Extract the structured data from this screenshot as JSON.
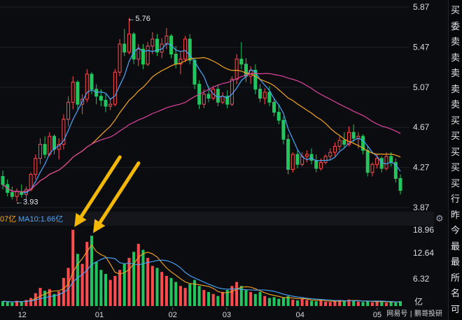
{
  "chart_data": [
    {
      "type": "candlestick",
      "x_axis_months": [
        "12",
        "01",
        "02",
        "03",
        "04",
        "05"
      ],
      "y_ticks": [
        "5.87",
        "5.47",
        "5.07",
        "4.67",
        "4.27",
        "3.87"
      ],
      "ylim": [
        3.87,
        5.87
      ],
      "annotations": [
        {
          "label": "←5.76",
          "price": 5.76,
          "kind": "period-high"
        },
        {
          "label": "←3.93",
          "price": 3.93,
          "kind": "period-low"
        }
      ],
      "candles_ohlc": [
        [
          4.18,
          4.24,
          4.05,
          4.1
        ],
        [
          4.1,
          4.15,
          3.98,
          4.02
        ],
        [
          4.02,
          4.08,
          3.95,
          3.98
        ],
        [
          3.98,
          4.06,
          3.93,
          4.03
        ],
        [
          4.03,
          4.1,
          3.97,
          4.0
        ],
        [
          4.0,
          4.08,
          3.94,
          4.05
        ],
        [
          4.05,
          4.22,
          4.03,
          4.2
        ],
        [
          4.2,
          4.4,
          4.15,
          4.36
        ],
        [
          4.36,
          4.56,
          4.3,
          4.5
        ],
        [
          4.5,
          4.58,
          4.36,
          4.4
        ],
        [
          4.4,
          4.62,
          4.38,
          4.58
        ],
        [
          4.58,
          4.6,
          4.4,
          4.45
        ],
        [
          4.45,
          4.56,
          4.35,
          4.5
        ],
        [
          4.5,
          4.8,
          4.45,
          4.75
        ],
        [
          4.75,
          4.98,
          4.68,
          4.92
        ],
        [
          4.92,
          5.18,
          4.85,
          5.12
        ],
        [
          5.12,
          5.14,
          4.85,
          4.9
        ],
        [
          4.9,
          5.0,
          4.8,
          4.95
        ],
        [
          4.95,
          5.25,
          4.92,
          5.2
        ],
        [
          5.2,
          5.22,
          5.0,
          5.05
        ],
        [
          5.05,
          5.1,
          4.9,
          4.98
        ],
        [
          4.98,
          5.05,
          4.88,
          4.94
        ],
        [
          4.94,
          5.0,
          4.82,
          4.88
        ],
        [
          4.88,
          4.96,
          4.84,
          4.9
        ],
        [
          4.9,
          5.25,
          4.88,
          5.22
        ],
        [
          5.22,
          5.55,
          5.18,
          5.5
        ],
        [
          5.5,
          5.65,
          5.38,
          5.42
        ],
        [
          5.42,
          5.76,
          5.4,
          5.6
        ],
        [
          5.6,
          5.62,
          5.3,
          5.35
        ],
        [
          5.35,
          5.5,
          5.28,
          5.45
        ],
        [
          5.45,
          5.5,
          5.25,
          5.3
        ],
        [
          5.3,
          5.52,
          5.28,
          5.48
        ],
        [
          5.48,
          5.62,
          5.4,
          5.55
        ],
        [
          5.55,
          5.6,
          5.38,
          5.42
        ],
        [
          5.42,
          5.56,
          5.36,
          5.5
        ],
        [
          5.5,
          5.66,
          5.45,
          5.58
        ],
        [
          5.58,
          5.6,
          5.36,
          5.4
        ],
        [
          5.4,
          5.48,
          5.26,
          5.3
        ],
        [
          5.3,
          5.42,
          5.2,
          5.35
        ],
        [
          5.35,
          5.58,
          5.32,
          5.55
        ],
        [
          5.55,
          5.6,
          5.3,
          5.34
        ],
        [
          5.34,
          5.36,
          5.05,
          5.1
        ],
        [
          5.1,
          5.14,
          4.85,
          4.9
        ],
        [
          4.9,
          5.05,
          4.86,
          5.0
        ],
        [
          5.0,
          5.08,
          4.92,
          4.96
        ],
        [
          4.96,
          5.08,
          4.94,
          5.05
        ],
        [
          5.05,
          5.1,
          4.88,
          4.92
        ],
        [
          4.92,
          5.02,
          4.9,
          4.98
        ],
        [
          4.98,
          5.04,
          4.86,
          4.9
        ],
        [
          4.9,
          5.18,
          4.88,
          5.15
        ],
        [
          5.15,
          5.4,
          5.1,
          5.35
        ],
        [
          5.35,
          5.52,
          5.25,
          5.3
        ],
        [
          5.3,
          5.36,
          5.12,
          5.18
        ],
        [
          5.18,
          5.28,
          5.1,
          5.24
        ],
        [
          5.24,
          5.3,
          5.0,
          5.05
        ],
        [
          5.05,
          5.1,
          4.92,
          4.96
        ],
        [
          4.96,
          5.06,
          4.9,
          5.02
        ],
        [
          5.02,
          5.08,
          4.88,
          4.92
        ],
        [
          4.92,
          4.96,
          4.78,
          4.82
        ],
        [
          4.82,
          4.9,
          4.7,
          4.74
        ],
        [
          4.74,
          4.78,
          4.5,
          4.55
        ],
        [
          4.55,
          4.6,
          4.2,
          4.25
        ],
        [
          4.25,
          4.42,
          4.22,
          4.4
        ],
        [
          4.4,
          4.44,
          4.26,
          4.3
        ],
        [
          4.3,
          4.42,
          4.28,
          4.38
        ],
        [
          4.38,
          4.44,
          4.32,
          4.4
        ],
        [
          4.4,
          4.46,
          4.3,
          4.34
        ],
        [
          4.34,
          4.4,
          4.22,
          4.26
        ],
        [
          4.26,
          4.36,
          4.24,
          4.32
        ],
        [
          4.32,
          4.4,
          4.3,
          4.38
        ],
        [
          4.38,
          4.46,
          4.34,
          4.42
        ],
        [
          4.42,
          4.52,
          4.38,
          4.48
        ],
        [
          4.48,
          4.58,
          4.44,
          4.54
        ],
        [
          4.54,
          4.62,
          4.46,
          4.5
        ],
        [
          4.5,
          4.68,
          4.48,
          4.62
        ],
        [
          4.62,
          4.7,
          4.52,
          4.56
        ],
        [
          4.56,
          4.62,
          4.46,
          4.58
        ],
        [
          4.58,
          4.6,
          4.4,
          4.44
        ],
        [
          4.44,
          4.48,
          4.18,
          4.22
        ],
        [
          4.22,
          4.32,
          4.18,
          4.3
        ],
        [
          4.3,
          4.4,
          4.26,
          4.36
        ],
        [
          4.36,
          4.38,
          4.22,
          4.26
        ],
        [
          4.26,
          4.42,
          4.24,
          4.38
        ],
        [
          4.38,
          4.42,
          4.28,
          4.32
        ],
        [
          4.32,
          4.36,
          4.12,
          4.16
        ],
        [
          4.16,
          4.2,
          4.0,
          4.04
        ]
      ],
      "overlays": [
        {
          "name": "MA-short",
          "color": "#4aa8ff"
        },
        {
          "name": "MA-mid",
          "color": "#f5a623"
        },
        {
          "name": "MA-long",
          "color": "#e0449f"
        }
      ]
    },
    {
      "type": "bar",
      "panel": "volume",
      "y_ticks": [
        "18.96",
        "12.64",
        "6.32"
      ],
      "unit": "亿",
      "ylim": [
        0,
        19.5
      ],
      "ma_labels": {
        "ma5_partial": "07亿",
        "ma10": "MA10:1.66亿"
      },
      "volumes": [
        1.2,
        1.0,
        0.9,
        1.3,
        1.1,
        1.5,
        2.0,
        3.2,
        4.5,
        3.8,
        4.2,
        3.0,
        3.6,
        7.0,
        9.5,
        19.0,
        13.0,
        10.5,
        16.0,
        17.5,
        11.0,
        9.0,
        8.0,
        6.5,
        7.5,
        9.0,
        10.5,
        12.0,
        13.5,
        15.5,
        14.0,
        12.0,
        10.0,
        9.5,
        8.5,
        7.5,
        7.0,
        6.0,
        5.0,
        4.5,
        5.5,
        6.5,
        5.0,
        4.0,
        3.5,
        3.0,
        2.5,
        3.5,
        4.0,
        5.0,
        6.0,
        5.0,
        4.0,
        3.5,
        3.0,
        3.5,
        2.5,
        2.0,
        2.2,
        1.8,
        2.0,
        2.5,
        1.6,
        1.4,
        1.8,
        1.5,
        1.3,
        1.2,
        1.4,
        1.1,
        1.0,
        1.3,
        1.5,
        1.2,
        1.6,
        1.4,
        1.1,
        1.0,
        1.2,
        0.9,
        1.3,
        1.1,
        0.8,
        1.0,
        0.9,
        1.2
      ],
      "highlight_arrows": 2
    }
  ],
  "side_panel": {
    "rows": [
      {
        "text": "买",
        "color": "white"
      },
      {
        "text": "委",
        "color": "white"
      },
      {
        "text": "卖",
        "color": "white"
      },
      {
        "text": "卖",
        "color": "white"
      },
      {
        "text": "卖",
        "color": "white"
      },
      {
        "text": "卖",
        "color": "white"
      },
      {
        "text": "卖",
        "color": "white"
      },
      {
        "text": "买",
        "color": "white"
      },
      {
        "text": "买",
        "color": "white"
      },
      {
        "text": "买",
        "color": "white"
      },
      {
        "text": "买",
        "color": "white"
      },
      {
        "text": "买",
        "color": "white"
      },
      {
        "text": "行",
        "color": "white"
      },
      {
        "text": "昨",
        "color": "white"
      },
      {
        "text": "今",
        "color": "white"
      },
      {
        "text": "最",
        "color": "white"
      },
      {
        "text": "最",
        "color": "white"
      },
      {
        "text": "所",
        "color": "white"
      },
      {
        "text": "名",
        "color": "white"
      },
      {
        "text": "可",
        "color": "white"
      }
    ]
  },
  "watermark": "网易号 | 鹏哥投研",
  "colors": {
    "up": "#ff4d4f",
    "down": "#22c55e",
    "background": "#0b0c10",
    "arrow": "#f5b800",
    "grid": "#1d2027"
  }
}
